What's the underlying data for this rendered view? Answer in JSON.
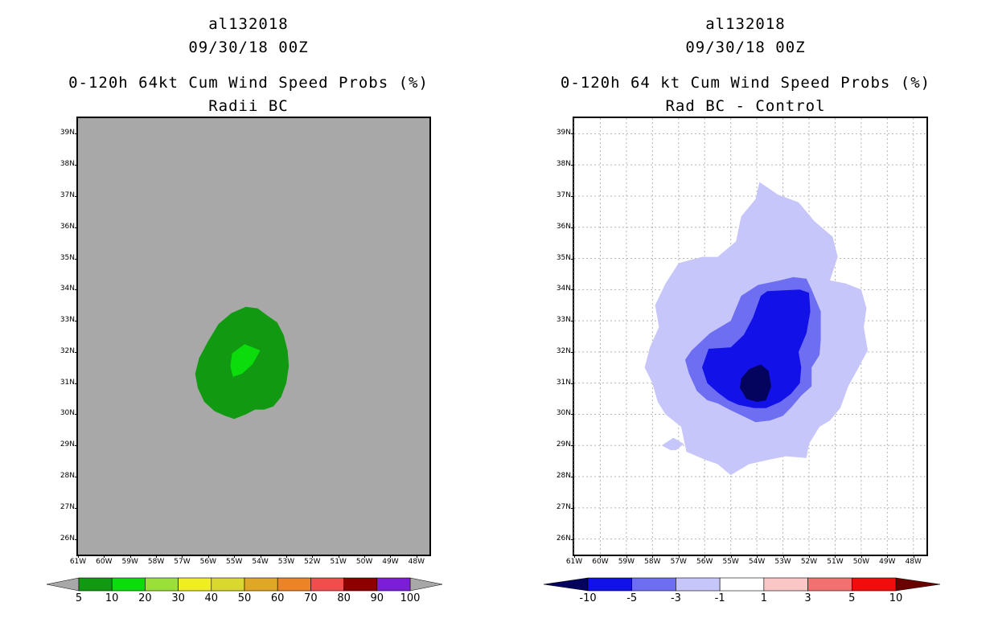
{
  "left": {
    "title1": "al132018",
    "title2": "09/30/18 00Z",
    "title3": "0-120h 64kt Cum Wind Speed Probs (%)",
    "title4": "Radii BC"
  },
  "right": {
    "title1": "al132018",
    "title2": "09/30/18 00Z",
    "title3": "0-120h 64 kt Cum Wind Speed Probs (%)",
    "title4": "Rad BC - Control"
  },
  "chart_data": [
    {
      "type": "heatmap",
      "title": "0-120h 64kt Cum Wind Speed Probs (%) - Radii BC",
      "xlim": [
        -61,
        -47.5
      ],
      "ylim": [
        25.5,
        39.5
      ],
      "x_ticks": [
        "61W",
        "60W",
        "59W",
        "58W",
        "57W",
        "56W",
        "55W",
        "54W",
        "53W",
        "52W",
        "51W",
        "50W",
        "49W",
        "48W"
      ],
      "y_ticks": [
        "26N",
        "27N",
        "28N",
        "29N",
        "30N",
        "31N",
        "32N",
        "33N",
        "34N",
        "35N",
        "36N",
        "37N",
        "38N",
        "39N"
      ],
      "grid": false,
      "background_color": "#a8a8a8",
      "contours": [
        {
          "level": 5,
          "color": "#119a11",
          "points": [
            [
              -56.35,
              31.8
            ],
            [
              -56.0,
              32.35
            ],
            [
              -55.6,
              32.9
            ],
            [
              -55.1,
              33.25
            ],
            [
              -54.55,
              33.45
            ],
            [
              -54.1,
              33.4
            ],
            [
              -53.7,
              33.15
            ],
            [
              -53.35,
              32.95
            ],
            [
              -53.1,
              32.55
            ],
            [
              -52.95,
              32.05
            ],
            [
              -52.9,
              31.55
            ],
            [
              -53.0,
              31.0
            ],
            [
              -53.2,
              30.55
            ],
            [
              -53.5,
              30.25
            ],
            [
              -53.85,
              30.15
            ],
            [
              -54.2,
              30.15
            ],
            [
              -54.55,
              30.0
            ],
            [
              -55.0,
              29.85
            ],
            [
              -55.35,
              29.95
            ],
            [
              -55.75,
              30.1
            ],
            [
              -56.15,
              30.4
            ],
            [
              -56.4,
              30.85
            ],
            [
              -56.5,
              31.3
            ]
          ]
        },
        {
          "level": 10,
          "color": "#0cdc0c",
          "points": [
            [
              -55.08,
              31.95
            ],
            [
              -54.6,
              32.25
            ],
            [
              -54.0,
              32.05
            ],
            [
              -54.3,
              31.6
            ],
            [
              -54.7,
              31.3
            ],
            [
              -55.05,
              31.2
            ],
            [
              -55.15,
              31.55
            ]
          ]
        }
      ],
      "colorbar": {
        "labels": [
          "5",
          "10",
          "20",
          "30",
          "40",
          "50",
          "60",
          "70",
          "80",
          "90",
          "100"
        ],
        "colors": [
          "#119a11",
          "#0cdc0c",
          "#9be03a",
          "#eeee22",
          "#d9d830",
          "#e0a626",
          "#ec8426",
          "#f04d4d",
          "#8c0000",
          "#7b1fd6"
        ],
        "under_color": "#a8a8a8",
        "over_color": "#a8a8a8"
      }
    },
    {
      "type": "heatmap",
      "title": "0-120h 64 kt Cum Wind Speed Probs (%) - Rad BC - Control",
      "xlim": [
        -61,
        -47.5
      ],
      "ylim": [
        25.5,
        39.5
      ],
      "x_ticks": [
        "61W",
        "60W",
        "59W",
        "58W",
        "57W",
        "56W",
        "55W",
        "54W",
        "53W",
        "52W",
        "51W",
        "50W",
        "49W",
        "48W"
      ],
      "y_ticks": [
        "26N",
        "27N",
        "28N",
        "29N",
        "30N",
        "31N",
        "32N",
        "33N",
        "34N",
        "35N",
        "36N",
        "37N",
        "38N",
        "39N"
      ],
      "grid": true,
      "background_color": "#ffffff",
      "contours": [
        {
          "level": -1,
          "color": "#c6c6fa",
          "points": [
            [
              -57.5,
              34.2
            ],
            [
              -57.0,
              34.85
            ],
            [
              -56.1,
              35.05
            ],
            [
              -55.5,
              35.05
            ],
            [
              -54.8,
              35.55
            ],
            [
              -54.6,
              36.35
            ],
            [
              -54.05,
              36.9
            ],
            [
              -53.9,
              37.45
            ],
            [
              -53.2,
              37.05
            ],
            [
              -52.4,
              36.8
            ],
            [
              -51.8,
              36.2
            ],
            [
              -51.1,
              35.7
            ],
            [
              -50.9,
              35.05
            ],
            [
              -51.2,
              34.3
            ],
            [
              -50.6,
              34.2
            ],
            [
              -50.0,
              34.0
            ],
            [
              -49.8,
              33.4
            ],
            [
              -49.9,
              32.8
            ],
            [
              -49.75,
              32.05
            ],
            [
              -50.1,
              31.5
            ],
            [
              -50.5,
              30.9
            ],
            [
              -50.8,
              30.2
            ],
            [
              -51.2,
              29.8
            ],
            [
              -51.6,
              29.6
            ],
            [
              -52.0,
              29.05
            ],
            [
              -52.1,
              28.6
            ],
            [
              -52.9,
              28.65
            ],
            [
              -53.5,
              28.55
            ],
            [
              -54.3,
              28.4
            ],
            [
              -55.0,
              28.05
            ],
            [
              -55.5,
              28.4
            ],
            [
              -56.0,
              28.55
            ],
            [
              -56.7,
              28.8
            ],
            [
              -56.9,
              29.6
            ],
            [
              -57.5,
              30.0
            ],
            [
              -57.8,
              30.4
            ],
            [
              -58.0,
              31.0
            ],
            [
              -58.3,
              31.5
            ],
            [
              -58.1,
              32.15
            ],
            [
              -57.75,
              32.8
            ],
            [
              -57.9,
              33.5
            ]
          ]
        },
        {
          "level": -1,
          "color": "#c6c6fa",
          "points": [
            [
              -57.65,
              29.0
            ],
            [
              -57.2,
              29.25
            ],
            [
              -56.8,
              29.05
            ],
            [
              -57.1,
              28.85
            ],
            [
              -57.3,
              28.85
            ]
          ]
        },
        {
          "level": -3,
          "color": "#6e6ef2",
          "points": [
            [
              -56.5,
              32.05
            ],
            [
              -55.8,
              32.6
            ],
            [
              -55.0,
              33.0
            ],
            [
              -54.6,
              33.8
            ],
            [
              -53.95,
              34.15
            ],
            [
              -53.1,
              34.3
            ],
            [
              -52.6,
              34.4
            ],
            [
              -52.1,
              34.35
            ],
            [
              -51.9,
              34.0
            ],
            [
              -51.55,
              33.3
            ],
            [
              -51.55,
              32.4
            ],
            [
              -51.6,
              31.9
            ],
            [
              -51.9,
              31.5
            ],
            [
              -51.9,
              30.9
            ],
            [
              -52.3,
              30.6
            ],
            [
              -52.65,
              30.25
            ],
            [
              -53.0,
              29.95
            ],
            [
              -53.5,
              29.8
            ],
            [
              -54.05,
              29.75
            ],
            [
              -54.55,
              29.95
            ],
            [
              -55.05,
              30.15
            ],
            [
              -55.5,
              30.35
            ],
            [
              -55.9,
              30.45
            ],
            [
              -56.3,
              30.75
            ],
            [
              -56.6,
              31.3
            ],
            [
              -56.75,
              31.75
            ]
          ]
        },
        {
          "level": -5,
          "color": "#1212e8",
          "points": [
            [
              -55.85,
              32.1
            ],
            [
              -55.0,
              32.15
            ],
            [
              -54.5,
              32.55
            ],
            [
              -54.15,
              33.1
            ],
            [
              -53.85,
              33.8
            ],
            [
              -53.6,
              33.95
            ],
            [
              -52.35,
              34.0
            ],
            [
              -52.0,
              33.9
            ],
            [
              -51.95,
              33.3
            ],
            [
              -52.1,
              32.6
            ],
            [
              -52.4,
              32.0
            ],
            [
              -52.3,
              31.5
            ],
            [
              -52.35,
              31.0
            ],
            [
              -52.7,
              30.65
            ],
            [
              -53.1,
              30.4
            ],
            [
              -53.65,
              30.2
            ],
            [
              -54.1,
              30.2
            ],
            [
              -54.7,
              30.3
            ],
            [
              -55.1,
              30.45
            ],
            [
              -55.5,
              30.7
            ],
            [
              -55.9,
              31.0
            ],
            [
              -56.1,
              31.5
            ]
          ]
        },
        {
          "level": -10,
          "color": "#04045e",
          "points": [
            [
              -54.6,
              31.15
            ],
            [
              -54.3,
              31.45
            ],
            [
              -53.85,
              31.6
            ],
            [
              -53.55,
              31.4
            ],
            [
              -53.45,
              30.9
            ],
            [
              -53.65,
              30.45
            ],
            [
              -54.0,
              30.4
            ],
            [
              -54.4,
              30.5
            ],
            [
              -54.65,
              30.85
            ]
          ]
        }
      ],
      "colorbar": {
        "labels": [
          "-10",
          "-5",
          "-3",
          "-1",
          "1",
          "3",
          "5",
          "10"
        ],
        "colors": [
          "#1212e8",
          "#6e6ef2",
          "#c6c6fa",
          "#ffffff",
          "#fac6c6",
          "#f27070",
          "#f20d0d"
        ],
        "under_color": "#04045e",
        "over_color": "#6b0000"
      }
    }
  ]
}
